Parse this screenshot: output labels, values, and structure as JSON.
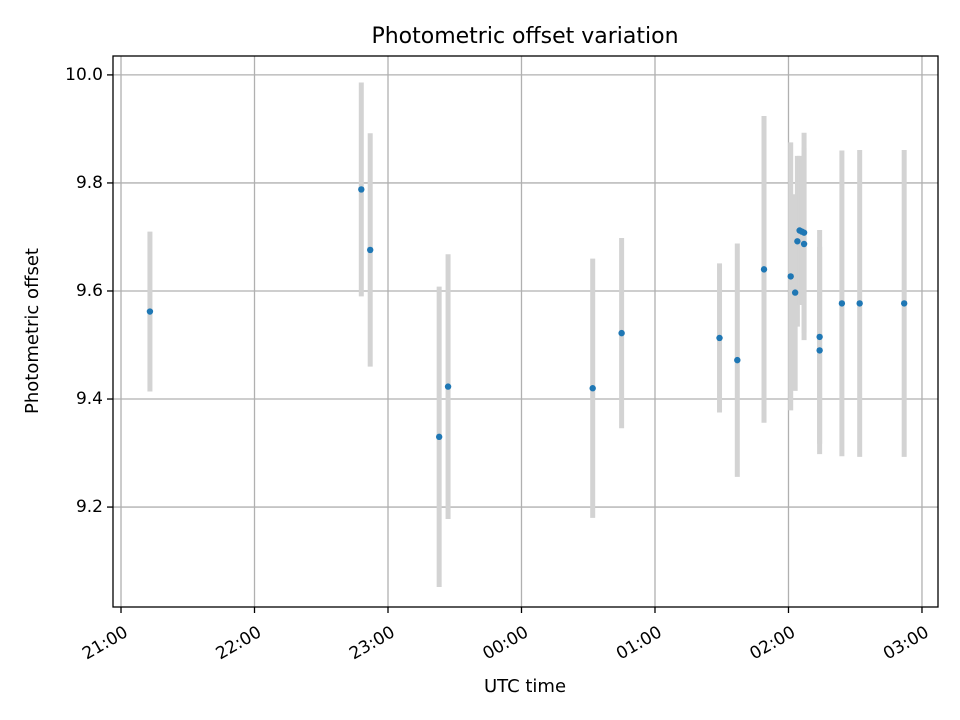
{
  "chart_data": {
    "type": "scatter",
    "title": "Photometric offset variation",
    "xlabel": "UTC time",
    "ylabel": "Photometric offset",
    "x_tick_labels": [
      "21:00",
      "22:00",
      "23:00",
      "00:00",
      "01:00",
      "02:00",
      "03:00"
    ],
    "x_tick_values_hours": [
      21,
      22,
      23,
      24,
      25,
      26,
      27
    ],
    "y_tick_labels": [
      "9.2",
      "9.4",
      "9.6",
      "9.8",
      "10.0"
    ],
    "y_tick_values": [
      9.2,
      9.4,
      9.6,
      9.8,
      10.0
    ],
    "xlim_hours": [
      20.94,
      27.12
    ],
    "ylim": [
      9.015,
      10.035
    ],
    "grid": true,
    "colors": {
      "points": "#1f77b4",
      "errorbars": "#d3d3d3",
      "grid": "#b0b0b0"
    },
    "series": [
      {
        "points": [
          {
            "t": "21:13",
            "y": 9.562,
            "err": 0.148
          },
          {
            "t": "22:48",
            "y": 9.788,
            "err": 0.198
          },
          {
            "t": "22:52",
            "y": 9.676,
            "err": 0.216
          },
          {
            "t": "23:23",
            "y": 9.33,
            "err": 0.278
          },
          {
            "t": "23:27",
            "y": 9.423,
            "err": 0.245
          },
          {
            "t": "00:32",
            "y": 9.42,
            "err": 0.24
          },
          {
            "t": "00:45",
            "y": 9.522,
            "err": 0.176
          },
          {
            "t": "01:29",
            "y": 9.513,
            "err": 0.138
          },
          {
            "t": "01:37",
            "y": 9.472,
            "err": 0.216
          },
          {
            "t": "01:49",
            "y": 9.64,
            "err": 0.284
          },
          {
            "t": "02:01",
            "y": 9.627,
            "err": 0.248
          },
          {
            "t": "02:03",
            "y": 9.597,
            "err": 0.182
          },
          {
            "t": "02:04",
            "y": 9.692,
            "err": 0.158
          },
          {
            "t": "02:05",
            "y": 9.712,
            "err": 0.138
          },
          {
            "t": "02:06",
            "y": 9.71,
            "err": 0.135
          },
          {
            "t": "02:07",
            "y": 9.708,
            "err": 0.185
          },
          {
            "t": "02:07",
            "y": 9.687,
            "err": 0.178
          },
          {
            "t": "02:14",
            "y": 9.515,
            "err": 0.198
          },
          {
            "t": "02:14",
            "y": 9.49,
            "err": 0.192
          },
          {
            "t": "02:24",
            "y": 9.577,
            "err": 0.283
          },
          {
            "t": "02:32",
            "y": 9.577,
            "err": 0.284
          },
          {
            "t": "02:52",
            "y": 9.577,
            "err": 0.284
          }
        ]
      }
    ]
  }
}
